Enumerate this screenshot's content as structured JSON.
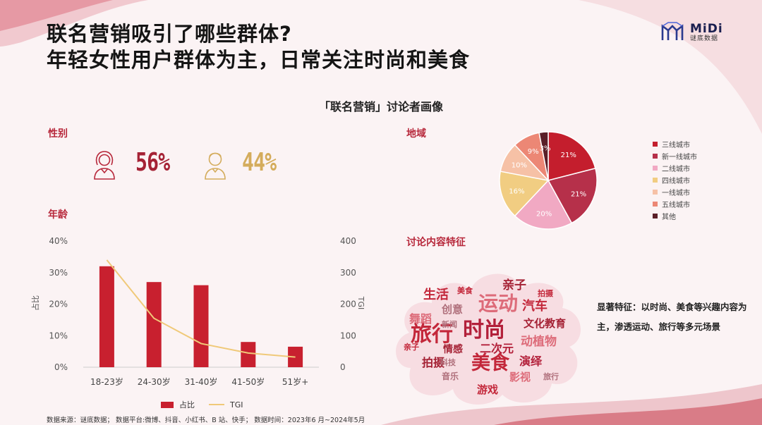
{
  "headline": {
    "line1": "联名营销吸引了哪些群体?",
    "line2": "年轻女性用户群体为主，日常关注时尚和美食"
  },
  "logo": {
    "brand": "MiDi",
    "sub": "谜底数据"
  },
  "page_subtitle": "「联名营销」讨论者画像",
  "sections": {
    "gender": "性别",
    "age": "年龄",
    "region": "地域",
    "content": "讨论内容特征"
  },
  "gender": {
    "female_pct": "56%",
    "male_pct": "44%",
    "female_color": "#a52235",
    "male_color": "#d4ac5c"
  },
  "colors": {
    "bar": "#c8202f",
    "tgi": "#f0c979"
  },
  "chart_data": [
    {
      "type": "bar",
      "categories": [
        "18-23岁",
        "24-30岁",
        "31-40岁",
        "41-50岁",
        "51岁+"
      ],
      "series": [
        {
          "name": "占比",
          "values": [
            32,
            27,
            26,
            8,
            6.5
          ]
        },
        {
          "name": "TGI",
          "values": [
            340,
            155,
            75,
            45,
            32
          ]
        }
      ],
      "ylabel": "占比",
      "y2label": "TGI",
      "ylim": [
        0,
        40
      ],
      "y2lim": [
        0,
        400
      ],
      "yticks": [
        "0%",
        "10%",
        "20%",
        "30%",
        "40%"
      ],
      "y2ticks": [
        "0",
        "100",
        "200",
        "300",
        "400"
      ],
      "legend": "bottom"
    },
    {
      "type": "pie",
      "labels": [
        "三线城市",
        "新一线城市",
        "二线城市",
        "四线城市",
        "一线城市",
        "五线城市",
        "其他"
      ],
      "values": [
        21,
        21,
        20,
        16,
        10,
        9,
        3
      ],
      "value_labels": [
        "21%",
        "21%",
        "20%",
        "16%",
        "10%",
        "9%",
        "3%"
      ],
      "colors": [
        "#c41e2d",
        "#b6304a",
        "#f1a9c3",
        "#f1cd82",
        "#f6c1a6",
        "#ec8775",
        "#5a1f28"
      ],
      "legend": "right"
    }
  ],
  "wordcloud": {
    "words": [
      {
        "text": "旅行",
        "color": "#c3273a"
      },
      {
        "text": "时尚",
        "color": "#b3203a"
      },
      {
        "text": "运动",
        "color": "#dd6b79"
      },
      {
        "text": "美食",
        "color": "#c3273a"
      },
      {
        "text": "文化教育",
        "color": "#a52235"
      },
      {
        "text": "生活",
        "color": "#c3273a"
      },
      {
        "text": "亲子",
        "color": "#a52235"
      },
      {
        "text": "汽车",
        "color": "#c3273a"
      },
      {
        "text": "动植物",
        "color": "#dd6b79"
      },
      {
        "text": "二次元",
        "color": "#b3203a"
      },
      {
        "text": "拍摄",
        "color": "#a52235"
      },
      {
        "text": "演绎",
        "color": "#b3203a"
      },
      {
        "text": "影视",
        "color": "#dd6b79"
      },
      {
        "text": "游戏",
        "color": "#c3273a"
      },
      {
        "text": "舞蹈",
        "color": "#dd6b79"
      },
      {
        "text": "创意",
        "color": "#b0707c"
      },
      {
        "text": "情感",
        "color": "#a52235"
      },
      {
        "text": "音乐",
        "color": "#b0707c"
      },
      {
        "text": "科技",
        "color": "#b0707c"
      },
      {
        "text": "新闻",
        "color": "#b0707c"
      },
      {
        "text": "美食",
        "color": "#c3273a"
      },
      {
        "text": "拍摄",
        "color": "#c3273a"
      },
      {
        "text": "亲子",
        "color": "#c3273a"
      },
      {
        "text": "旅行",
        "color": "#b0707c"
      }
    ]
  },
  "traits": "显著特征：以时尚、美食等兴趣内容为主，渗透运动、旅行等多元场景",
  "footer": "数据来源：谜底数据；    数据平台:微博、抖音、小红书、B 站、快手；    数据时间：2023年6 月~2024年5月"
}
